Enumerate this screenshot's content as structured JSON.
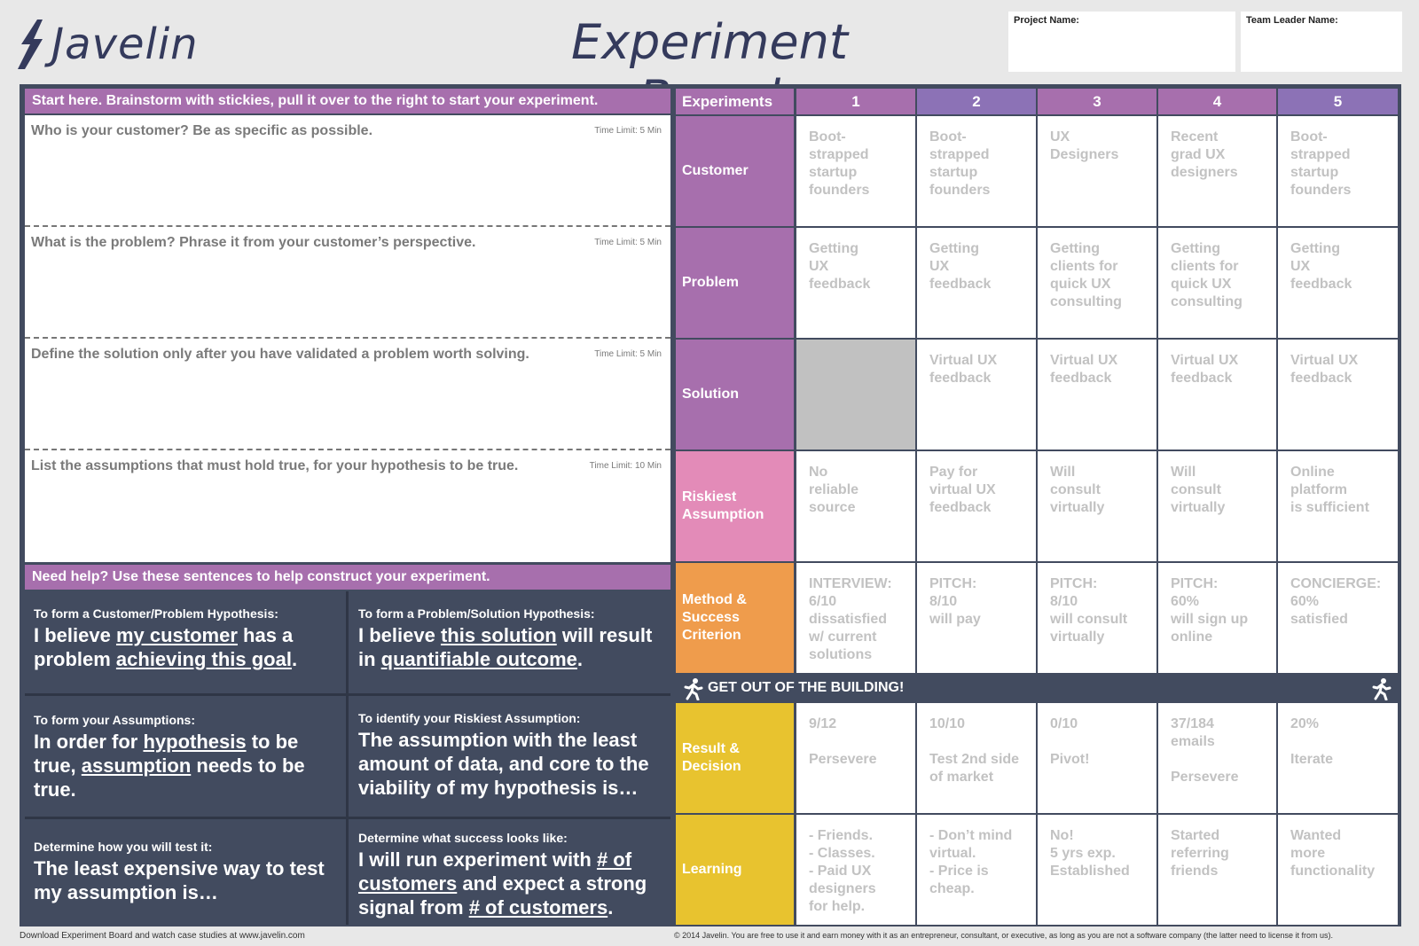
{
  "header": {
    "logo_text": "Javelin",
    "title": "Experiment Board",
    "project_name_label": "Project Name:",
    "team_leader_label": "Team Leader Name:"
  },
  "left": {
    "start_bar": "Start here. Brainstorm with stickies, pull it over to the right to start your experiment.",
    "questions": [
      {
        "text": "Who is your customer? Be as specific as possible.",
        "time": "Time Limit: 5 Min"
      },
      {
        "text": "What is the problem? Phrase it from your customer’s perspective.",
        "time": "Time Limit: 5 Min"
      },
      {
        "text": "Define the solution only after you have validated a problem worth solving.",
        "time": "Time Limit: 5 Min"
      },
      {
        "text": "List the assumptions that must hold true, for your hypothesis to be true.",
        "time": "Time Limit: 10 Min"
      }
    ],
    "help_bar": "Need help? Use these sentences to help construct your experiment.",
    "help": [
      {
        "small": "To form a Customer/Problem Hypothesis:",
        "parts": [
          "I believe ",
          "my customer",
          " has a problem ",
          "achieving this goal",
          "."
        ]
      },
      {
        "small": "To form a Problem/Solution Hypothesis:",
        "parts": [
          "I believe ",
          "this solution",
          " will result in ",
          "quantifiable outcome",
          "."
        ]
      },
      {
        "small": "To form your Assumptions:",
        "parts": [
          "In order for ",
          "hypothesis",
          " to be true, ",
          "assumption",
          " needs to be true."
        ]
      },
      {
        "small": "To identify your Riskiest Assumption:",
        "parts": [
          "The assumption with the least amount of data, and core to the viability of my hypothesis is…"
        ]
      },
      {
        "small": "Determine how you will test it:",
        "parts": [
          "The least expensive way to test my assumption is…"
        ]
      },
      {
        "small": "Determine what success looks like:",
        "parts": [
          "I will run experiment with ",
          "# of customers",
          " and expect a strong signal from ",
          "# of customers",
          "."
        ]
      }
    ]
  },
  "table": {
    "corner_label": "Experiments",
    "columns": [
      "1",
      "2",
      "3",
      "4",
      "5"
    ],
    "rows": [
      {
        "label": "Customer",
        "color": "#a76fad",
        "cells": [
          "Boot-\nstrapped\nstartup\nfounders",
          "Boot-\nstrapped\nstartup\nfounders",
          "UX\nDesigners",
          "Recent\ngrad UX\ndesigners",
          "Boot-\nstrapped\nstartup\nfounders"
        ]
      },
      {
        "label": "Problem",
        "color": "#a76fad",
        "cells": [
          "Getting\nUX\nfeedback",
          "Getting\nUX\nfeedback",
          "Getting\nclients for\nquick UX\nconsulting",
          "Getting\nclients for\nquick UX\nconsulting",
          "Getting\nUX\nfeedback"
        ]
      },
      {
        "label": "Solution",
        "color": "#a76fad",
        "cells": [
          "",
          "Virtual UX\nfeedback",
          "Virtual UX\nfeedback",
          "Virtual UX\nfeedback",
          "Virtual UX\nfeedback"
        ]
      },
      {
        "label": "Riskiest\nAssumption",
        "color": "#e38bb8",
        "cells": [
          "No\nreliable\nsource",
          "Pay for\nvirtual UX\nfeedback",
          "Will\nconsult\nvirtually",
          "Will\nconsult\nvirtually",
          "Online\nplatform\nis sufficient"
        ]
      },
      {
        "label": "Method &\nSuccess\nCriterion",
        "color": "#ef9c4c",
        "cells": [
          "INTERVIEW:\n6/10\ndissatisfied\nw/ current\nsolutions",
          "PITCH:\n8/10\nwill pay",
          "PITCH:\n8/10\nwill consult\nvirtually",
          "PITCH:\n60%\nwill sign up\nonline",
          "CONCIERGE:\n60%\nsatisfied"
        ]
      },
      {
        "label": "Result &\nDecision",
        "color": "#e8c32f",
        "cells": [
          "9/12\n\nPersevere",
          "10/10\n\nTest 2nd side\nof market",
          "0/10\n\nPivot!",
          "37/184\nemails\n\nPersevere",
          "20%\n\nIterate"
        ]
      },
      {
        "label": "Learning",
        "color": "#e8c32f",
        "cells": [
          "- Friends.\n- Classes.\n- Paid UX\n  designers\n  for help.",
          "- Don’t mind\n  virtual.\n- Price is\n  cheap.",
          "No!\n5 yrs exp.\nEstablished",
          "Started\nreferring\nfriends",
          "Wanted\nmore\nfunctionality"
        ]
      }
    ],
    "get_out_label": "GET OUT OF THE BUILDING!"
  },
  "footer": {
    "left": "Download Experiment Board and watch case studies at www.javelin.com",
    "right": "© 2014 Javelin. You are free to use it and earn money with it as an entrepreneur, consultant, or executive, as long as you are not a software company (the latter need to license it from us)."
  },
  "colors": {
    "purple": "#a76fad",
    "header_alt": "#8c72b6",
    "slate": "#424b5f"
  }
}
